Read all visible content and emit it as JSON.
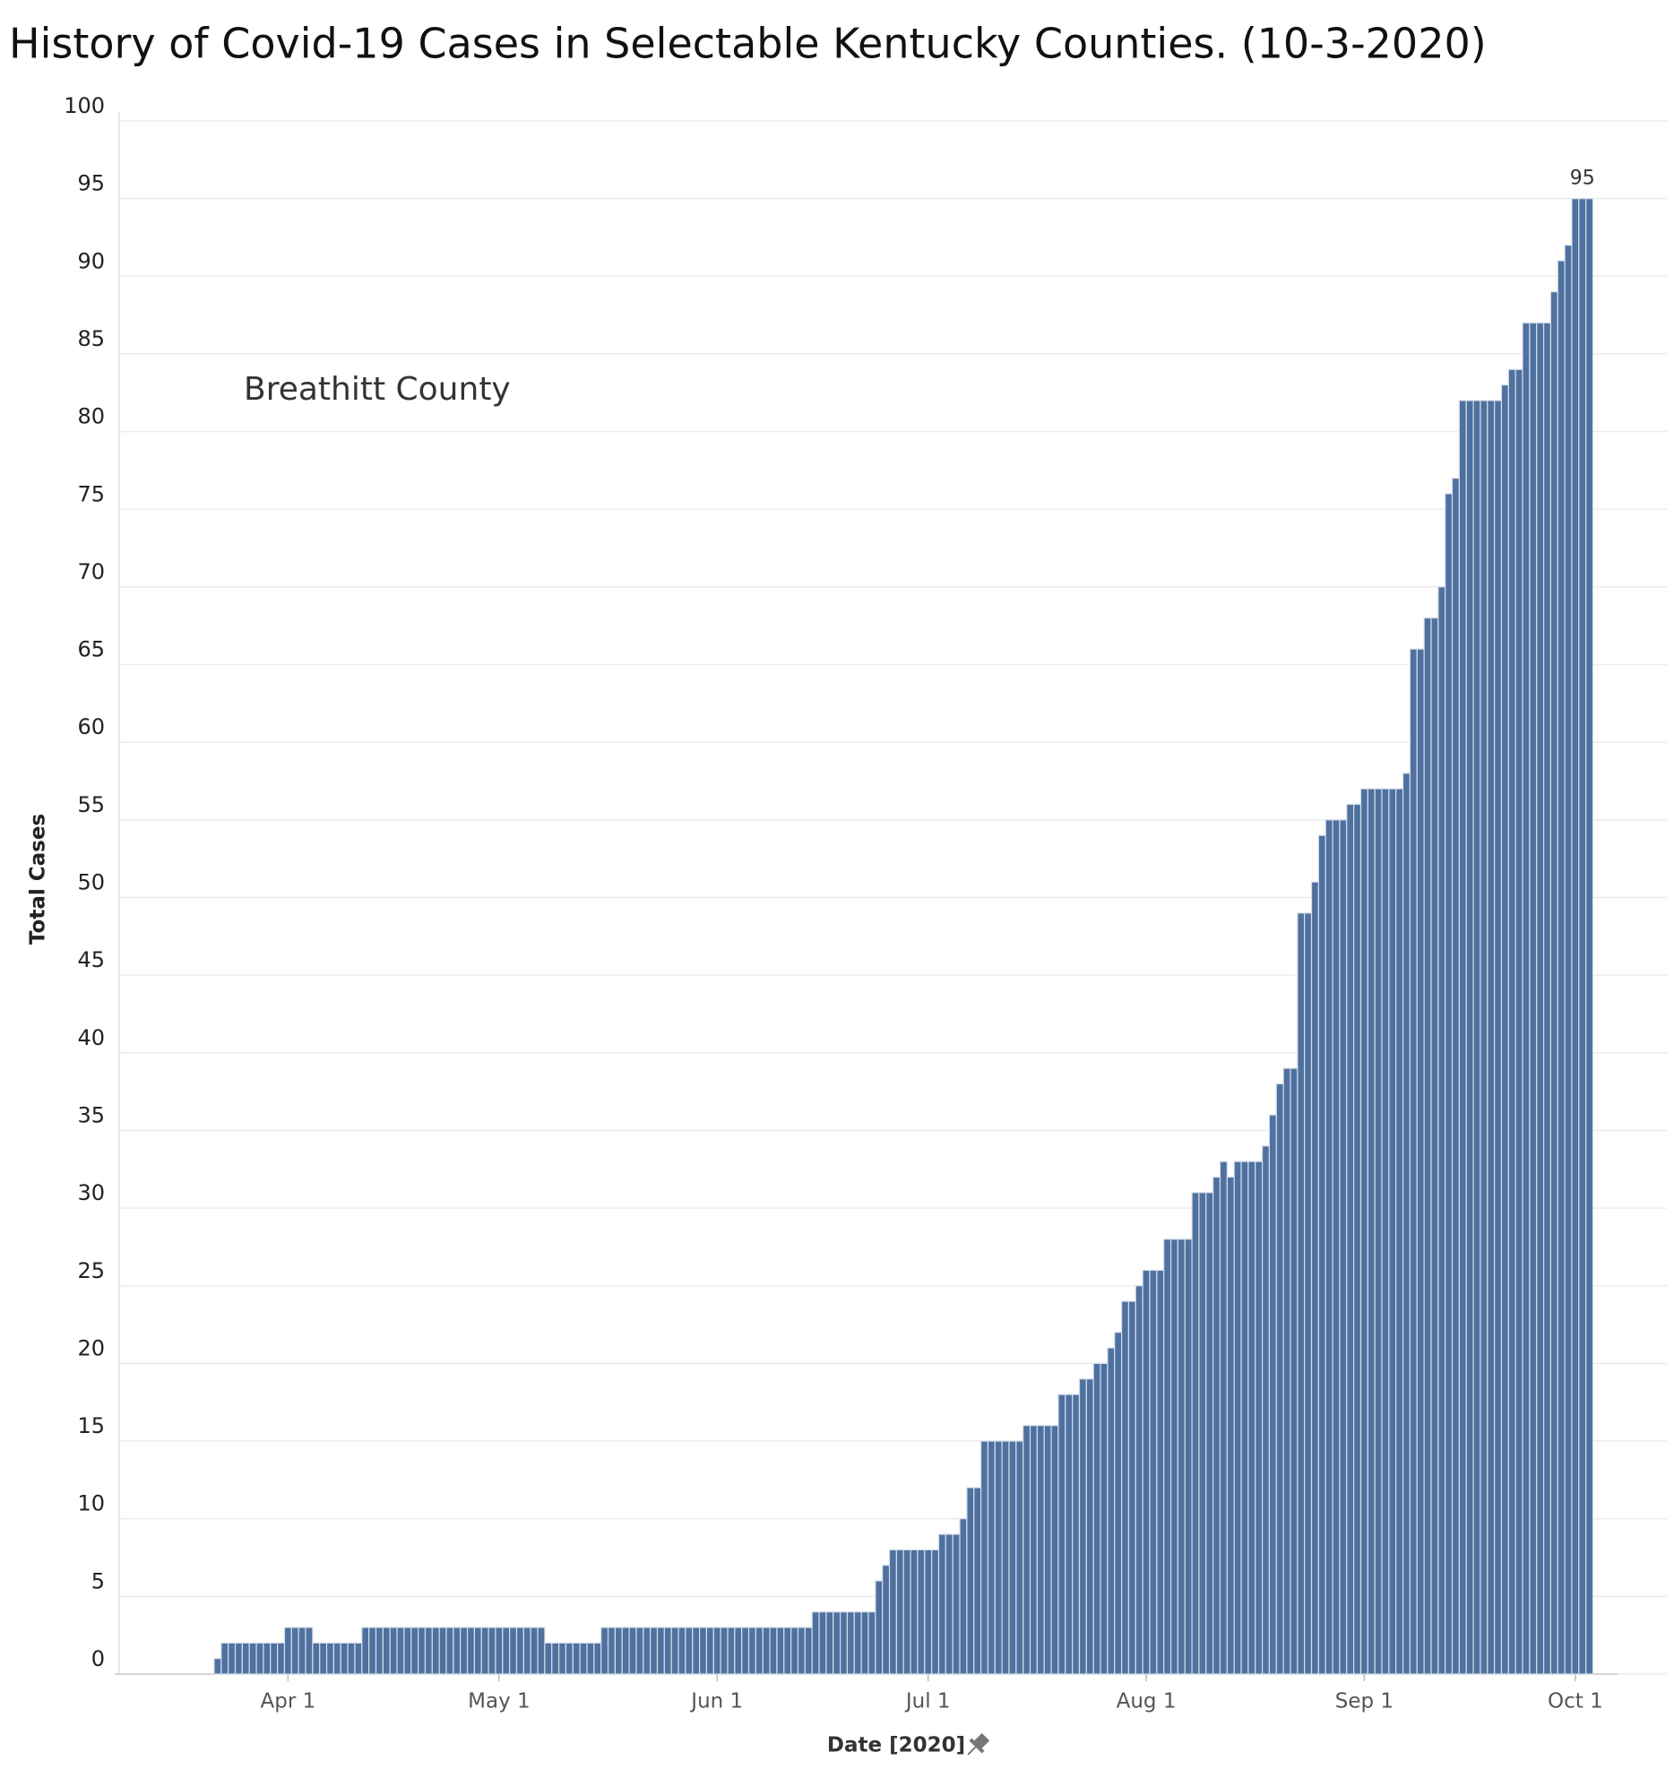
{
  "chart_data": {
    "type": "bar",
    "title": "History of Covid-19 Cases in Selectable Kentucky Counties. (10-3-2020)",
    "annotation": "Breathitt County",
    "x_label": "Date [2020]",
    "y_label": "Total Cases",
    "color": "#4e71a0",
    "grid": true,
    "xlim": [
      "2020-03-08",
      "2020-10-07"
    ],
    "xticks": [
      {
        "value": "2020-04-01",
        "label": "Apr 1"
      },
      {
        "value": "2020-05-01",
        "label": "May 1"
      },
      {
        "value": "2020-06-01",
        "label": "Jun 1"
      },
      {
        "value": "2020-07-01",
        "label": "Jul 1"
      },
      {
        "value": "2020-08-01",
        "label": "Aug 1"
      },
      {
        "value": "2020-09-01",
        "label": "Sep 1"
      },
      {
        "value": "2020-10-01",
        "label": "Oct 1"
      }
    ],
    "ylim": [
      0,
      100
    ],
    "yticks": [
      0,
      5,
      10,
      15,
      20,
      25,
      30,
      35,
      40,
      45,
      50,
      55,
      60,
      65,
      70,
      75,
      80,
      85,
      90,
      95,
      100
    ],
    "labeled_index": 195,
    "x": [
      "2020-03-22",
      "2020-03-23",
      "2020-03-24",
      "2020-03-25",
      "2020-03-26",
      "2020-03-27",
      "2020-03-28",
      "2020-03-29",
      "2020-03-30",
      "2020-03-31",
      "2020-04-01",
      "2020-04-02",
      "2020-04-03",
      "2020-04-04",
      "2020-04-05",
      "2020-04-06",
      "2020-04-07",
      "2020-04-08",
      "2020-04-09",
      "2020-04-10",
      "2020-04-11",
      "2020-04-12",
      "2020-04-13",
      "2020-04-14",
      "2020-04-15",
      "2020-04-16",
      "2020-04-17",
      "2020-04-18",
      "2020-04-19",
      "2020-04-20",
      "2020-04-21",
      "2020-04-22",
      "2020-04-23",
      "2020-04-24",
      "2020-04-25",
      "2020-04-26",
      "2020-04-27",
      "2020-04-28",
      "2020-04-29",
      "2020-04-30",
      "2020-05-01",
      "2020-05-02",
      "2020-05-03",
      "2020-05-04",
      "2020-05-05",
      "2020-05-06",
      "2020-05-07",
      "2020-05-08",
      "2020-05-09",
      "2020-05-10",
      "2020-05-11",
      "2020-05-12",
      "2020-05-13",
      "2020-05-14",
      "2020-05-15",
      "2020-05-16",
      "2020-05-17",
      "2020-05-18",
      "2020-05-19",
      "2020-05-20",
      "2020-05-21",
      "2020-05-22",
      "2020-05-23",
      "2020-05-24",
      "2020-05-25",
      "2020-05-26",
      "2020-05-27",
      "2020-05-28",
      "2020-05-29",
      "2020-05-30",
      "2020-05-31",
      "2020-06-01",
      "2020-06-02",
      "2020-06-03",
      "2020-06-04",
      "2020-06-05",
      "2020-06-06",
      "2020-06-07",
      "2020-06-08",
      "2020-06-09",
      "2020-06-10",
      "2020-06-11",
      "2020-06-12",
      "2020-06-13",
      "2020-06-14",
      "2020-06-15",
      "2020-06-16",
      "2020-06-17",
      "2020-06-18",
      "2020-06-19",
      "2020-06-20",
      "2020-06-21",
      "2020-06-22",
      "2020-06-23",
      "2020-06-24",
      "2020-06-25",
      "2020-06-26",
      "2020-06-27",
      "2020-06-28",
      "2020-06-29",
      "2020-06-30",
      "2020-07-01",
      "2020-07-02",
      "2020-07-03",
      "2020-07-04",
      "2020-07-05",
      "2020-07-06",
      "2020-07-07",
      "2020-07-08",
      "2020-07-09",
      "2020-07-10",
      "2020-07-11",
      "2020-07-12",
      "2020-07-13",
      "2020-07-14",
      "2020-07-15",
      "2020-07-16",
      "2020-07-17",
      "2020-07-18",
      "2020-07-19",
      "2020-07-20",
      "2020-07-21",
      "2020-07-22",
      "2020-07-23",
      "2020-07-24",
      "2020-07-25",
      "2020-07-26",
      "2020-07-27",
      "2020-07-28",
      "2020-07-29",
      "2020-07-30",
      "2020-07-31",
      "2020-08-01",
      "2020-08-02",
      "2020-08-03",
      "2020-08-04",
      "2020-08-05",
      "2020-08-06",
      "2020-08-07",
      "2020-08-08",
      "2020-08-09",
      "2020-08-10",
      "2020-08-11",
      "2020-08-12",
      "2020-08-13",
      "2020-08-14",
      "2020-08-15",
      "2020-08-16",
      "2020-08-17",
      "2020-08-18",
      "2020-08-19",
      "2020-08-20",
      "2020-08-21",
      "2020-08-22",
      "2020-08-23",
      "2020-08-24",
      "2020-08-25",
      "2020-08-26",
      "2020-08-27",
      "2020-08-28",
      "2020-08-29",
      "2020-08-30",
      "2020-08-31",
      "2020-09-01",
      "2020-09-02",
      "2020-09-03",
      "2020-09-04",
      "2020-09-05",
      "2020-09-06",
      "2020-09-07",
      "2020-09-08",
      "2020-09-09",
      "2020-09-10",
      "2020-09-11",
      "2020-09-12",
      "2020-09-13",
      "2020-09-14",
      "2020-09-15",
      "2020-09-16",
      "2020-09-17",
      "2020-09-18",
      "2020-09-19",
      "2020-09-20",
      "2020-09-21",
      "2020-09-22",
      "2020-09-23",
      "2020-09-24",
      "2020-09-25",
      "2020-09-26",
      "2020-09-27",
      "2020-09-28",
      "2020-09-29",
      "2020-09-30",
      "2020-10-01",
      "2020-10-02",
      "2020-10-03"
    ],
    "values": [
      1,
      2,
      2,
      2,
      2,
      2,
      2,
      2,
      2,
      2,
      3,
      3,
      3,
      3,
      2,
      2,
      2,
      2,
      2,
      2,
      2,
      3,
      3,
      3,
      3,
      3,
      3,
      3,
      3,
      3,
      3,
      3,
      3,
      3,
      3,
      3,
      3,
      3,
      3,
      3,
      3,
      3,
      3,
      3,
      3,
      3,
      3,
      2,
      2,
      2,
      2,
      2,
      2,
      2,
      2,
      3,
      3,
      3,
      3,
      3,
      3,
      3,
      3,
      3,
      3,
      3,
      3,
      3,
      3,
      3,
      3,
      3,
      3,
      3,
      3,
      3,
      3,
      3,
      3,
      3,
      3,
      3,
      3,
      3,
      3,
      4,
      4,
      4,
      4,
      4,
      4,
      4,
      4,
      4,
      6,
      7,
      8,
      8,
      8,
      8,
      8,
      8,
      8,
      9,
      9,
      9,
      10,
      12,
      12,
      15,
      15,
      15,
      15,
      15,
      15,
      16,
      16,
      16,
      16,
      16,
      18,
      18,
      18,
      19,
      19,
      20,
      20,
      21,
      22,
      24,
      24,
      25,
      26,
      26,
      26,
      28,
      28,
      28,
      28,
      31,
      31,
      31,
      32,
      33,
      32,
      33,
      33,
      33,
      33,
      34,
      36,
      38,
      39,
      39,
      49,
      49,
      51,
      54,
      55,
      55,
      55,
      56,
      56,
      57,
      57,
      57,
      57,
      57,
      57,
      58,
      66,
      66,
      68,
      68,
      70,
      76,
      77,
      82,
      82,
      82,
      82,
      82,
      82,
      83,
      84,
      84,
      87,
      87,
      87,
      87,
      89,
      91,
      92,
      95,
      95,
      95
    ]
  }
}
